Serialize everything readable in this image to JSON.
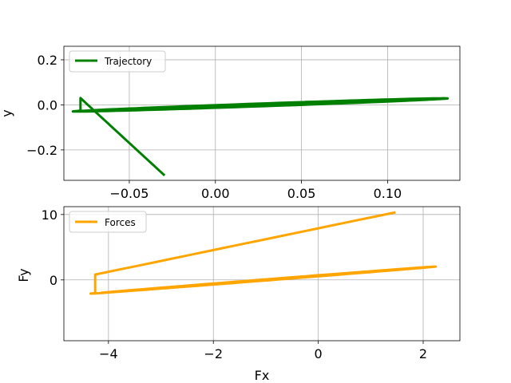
{
  "chart_data": [
    {
      "type": "line",
      "title": "",
      "xlabel": "",
      "ylabel": "y",
      "xlim": [
        -0.088,
        0.142
      ],
      "ylim": [
        -0.335,
        0.26
      ],
      "xticks": [
        -0.05,
        0.0,
        0.05,
        0.1
      ],
      "xtick_labels": [
        "−0.05",
        "0.00",
        "0.05",
        "0.10"
      ],
      "yticks": [
        -0.2,
        0.0,
        0.2
      ],
      "ytick_labels": [
        "−0.2",
        "0.0",
        "0.2"
      ],
      "grid": true,
      "legend": "upper-left",
      "series": [
        {
          "name": "Trajectory",
          "color": "#008000",
          "curve": {
            "cx": 0.027,
            "cy": 0.0,
            "a0": 0.11,
            "b0": 0.105,
            "decay": 0.00011,
            "turns": 8,
            "start": [
              -0.03,
              -0.31
            ],
            "slope": 0.95,
            "phase": 2.85,
            "pts_per_turn": 120
          }
        }
      ]
    },
    {
      "type": "line",
      "title": "",
      "xlabel": "Fx",
      "ylabel": "Fy",
      "xlim": [
        -4.85,
        2.7
      ],
      "ylim": [
        -9.3,
        11.2
      ],
      "xticks": [
        -4,
        -2,
        0,
        2
      ],
      "xtick_labels": [
        "−4",
        "−2",
        "0",
        "2"
      ],
      "yticks": [
        0,
        10
      ],
      "ytick_labels": [
        "0",
        "10"
      ],
      "grid": true,
      "legend": "upper-left",
      "series": [
        {
          "name": "Forces",
          "color": "#ffa500",
          "curve": {
            "cx": -1.0,
            "cy": 0.0,
            "a0": 3.35,
            "b0": 3.4,
            "decay": 0.0002,
            "turns": 8,
            "start": [
              1.45,
              10.3
            ],
            "slope": 2.25,
            "phase": 2.9,
            "pts_per_turn": 120
          }
        }
      ]
    }
  ]
}
